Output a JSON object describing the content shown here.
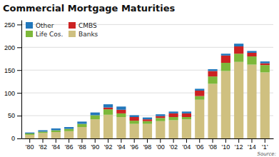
{
  "chart_data": {
    "type": "bar",
    "stacked": true,
    "title": "Commercial Mortgage Maturities",
    "categories": [
      "'80",
      "'82",
      "'84",
      "'86",
      "'88",
      "'90",
      "'92",
      "'94",
      "'96",
      "'98",
      "'00",
      "'02",
      "'04",
      "'06",
      "'08",
      "'10",
      "'12",
      "'14",
      "'1’"
    ],
    "series": [
      {
        "name": "Banks",
        "color": "#cfc080",
        "values": [
          8,
          12,
          14,
          16,
          25,
          42,
          52,
          47,
          32,
          32,
          38,
          40,
          42,
          85,
          120,
          148,
          168,
          162,
          145
        ]
      },
      {
        "name": "Life Cos.",
        "color": "#7db83a",
        "values": [
          3,
          3,
          4,
          5,
          7,
          9,
          12,
          8,
          7,
          6,
          7,
          7,
          5,
          8,
          16,
          18,
          18,
          18,
          16
        ]
      },
      {
        "name": "CMBS",
        "color": "#cc2222",
        "values": [
          0,
          0,
          0,
          0,
          0,
          0,
          4,
          8,
          8,
          4,
          4,
          8,
          8,
          12,
          12,
          16,
          16,
          8,
          4
        ]
      },
      {
        "name": "Other",
        "color": "#2277bb",
        "values": [
          2,
          3,
          4,
          4,
          5,
          6,
          7,
          7,
          4,
          4,
          4,
          4,
          4,
          4,
          4,
          4,
          6,
          4,
          4
        ]
      }
    ],
    "ylim": [
      0,
      260
    ],
    "yticks": [
      0,
      50,
      100,
      150,
      200,
      250
    ],
    "grid": true,
    "legend": "upper left",
    "annotations": [
      "Source:"
    ]
  }
}
